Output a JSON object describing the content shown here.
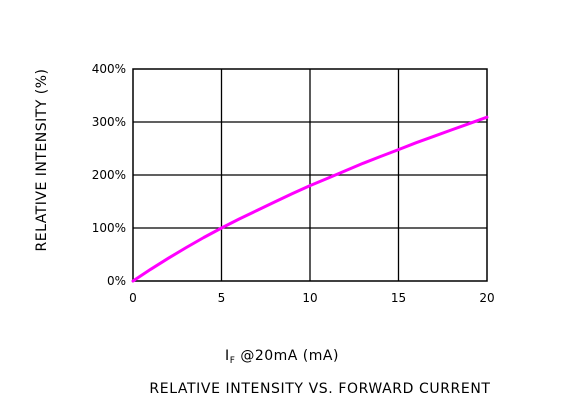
{
  "chart_data": {
    "type": "line",
    "title": "RELATIVE INTENSITY VS. FORWARD CURRENT",
    "xlabel": "I_F @20mA (mA)",
    "xlabel_parts": {
      "symbol": "I",
      "subscript": "F",
      "rest": " @20mA  (mA)"
    },
    "ylabel": "RELATIVE INTENSITY (%)",
    "xlim": [
      0,
      20
    ],
    "ylim": [
      0,
      400
    ],
    "x_ticks": [
      0,
      5,
      10,
      15,
      20
    ],
    "x_tick_labels": [
      "0",
      "5",
      "10",
      "15",
      "20"
    ],
    "y_ticks": [
      0,
      100,
      200,
      300,
      400
    ],
    "y_tick_labels": [
      "0%",
      "100%",
      "200%",
      "300%",
      "400%"
    ],
    "grid": true,
    "colors": {
      "series": "#ff00ff",
      "axes": "#000000"
    },
    "series": [
      {
        "x": [
          0,
          1,
          2,
          3,
          4,
          5,
          6,
          7,
          8,
          9,
          10,
          11,
          12,
          13,
          14,
          15,
          16,
          17,
          18,
          19,
          20
        ],
        "values": [
          0,
          22,
          43,
          63,
          82,
          100,
          117,
          133,
          149,
          165,
          180,
          194,
          208,
          222,
          235,
          248,
          261,
          273,
          285,
          297,
          309
        ]
      }
    ]
  }
}
